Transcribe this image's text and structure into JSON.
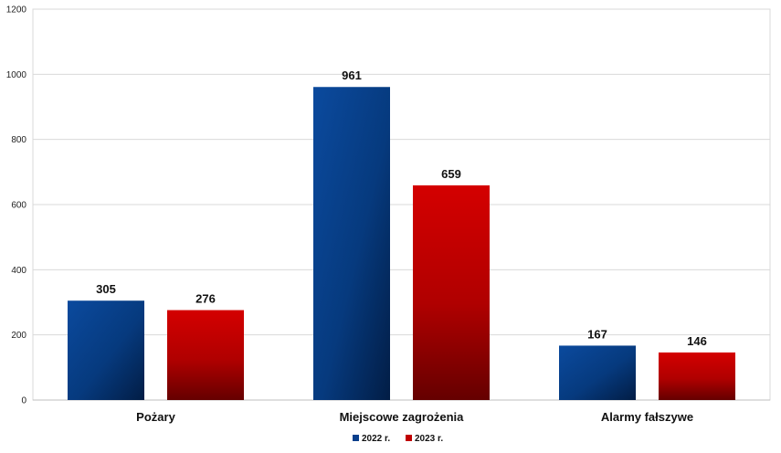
{
  "chart_data": {
    "type": "bar",
    "categories": [
      "Pożary",
      "Miejscowe zagrożenia",
      "Alarmy fałszywe"
    ],
    "series": [
      {
        "name": "2022 r.",
        "values": [
          305,
          961,
          167
        ],
        "color": "#0a3f8c"
      },
      {
        "name": "2023 r.",
        "values": [
          276,
          659,
          146
        ],
        "color": "#c00000"
      }
    ],
    "yticks": [
      0,
      200,
      400,
      600,
      800,
      1000,
      1200
    ],
    "ylim": [
      0,
      1200
    ],
    "grid": true,
    "legend_position": "bottom-center"
  }
}
